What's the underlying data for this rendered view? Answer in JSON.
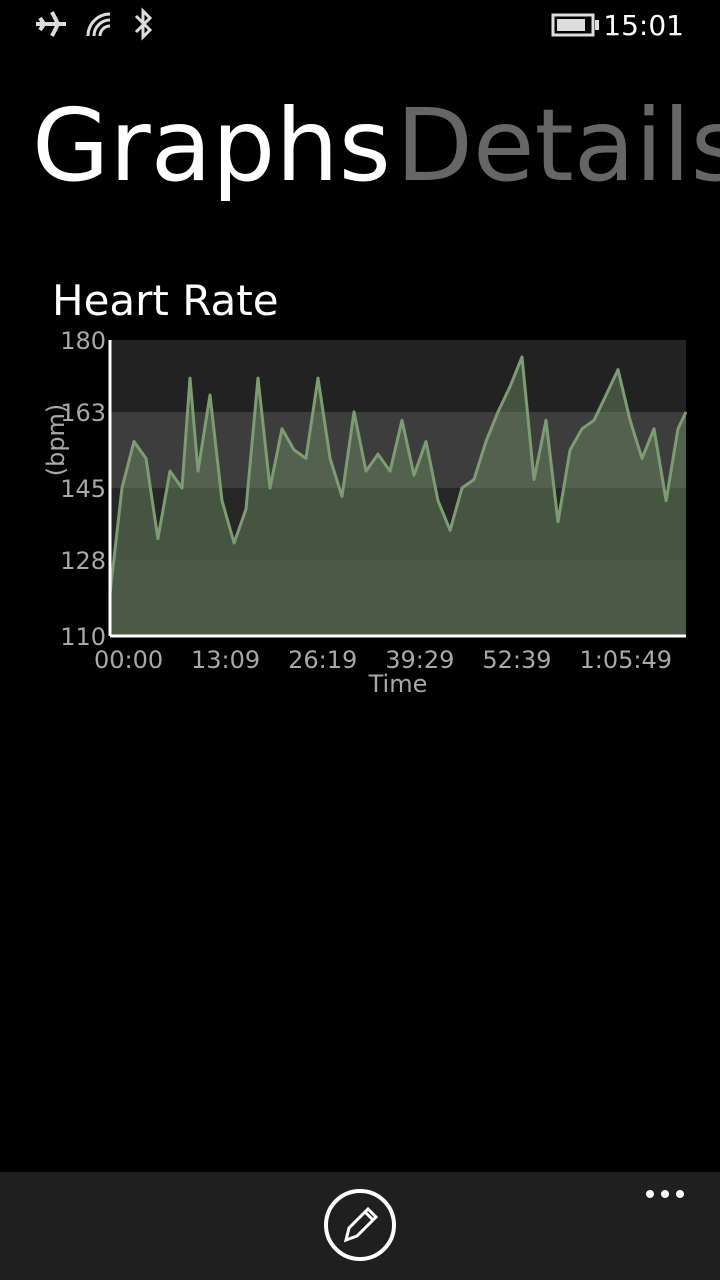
{
  "status_bar": {
    "time": "15:01"
  },
  "pivot": {
    "tabs": [
      "Graphs",
      "Details"
    ]
  },
  "chart_data": {
    "type": "line",
    "title": "Heart Rate",
    "x_label": "Time",
    "y_label": "(bpm)",
    "x": [
      0,
      98,
      195,
      293,
      390,
      488,
      586,
      651,
      716,
      813,
      911,
      1009,
      1106,
      1204,
      1301,
      1399,
      1497,
      1594,
      1692,
      1790,
      1887,
      1985,
      2082,
      2180,
      2278,
      2375,
      2473,
      2570,
      2668,
      2766,
      2863,
      2961,
      3058,
      3156,
      3254,
      3351,
      3449,
      3546,
      3644,
      3742,
      3839,
      3937,
      4035,
      4132,
      4230,
      4327,
      4425,
      4523,
      4620,
      4685
    ],
    "values": [
      120,
      145,
      156,
      152,
      133,
      149,
      145,
      171,
      149,
      167,
      142,
      132,
      140,
      171,
      145,
      159,
      154,
      152,
      171,
      152,
      143,
      163,
      149,
      153,
      149,
      161,
      148,
      156,
      142,
      135,
      145,
      147,
      156,
      163,
      169,
      176,
      147,
      161,
      137,
      154,
      159,
      161,
      167,
      173,
      161,
      152,
      159,
      142,
      159,
      163
    ],
    "color": "#7d9c72",
    "area_color": "rgba(110,145,100,0.45)",
    "xlim": [
      0,
      4685
    ],
    "xticks": [
      {
        "value": 0,
        "label": "00:00"
      },
      {
        "value": 789,
        "label": "13:09"
      },
      {
        "value": 1579,
        "label": "26:19"
      },
      {
        "value": 2369,
        "label": "39:29"
      },
      {
        "value": 3159,
        "label": "52:39"
      },
      {
        "value": 3949,
        "label": "1:05:49"
      }
    ],
    "ylim": [
      110,
      180
    ],
    "yticks": [
      110,
      128,
      145,
      163,
      180
    ],
    "band_colors": [
      "#2e2e2e",
      "#262626",
      "#3d3d3d",
      "#222222"
    ],
    "axis_color": "#ffffff"
  }
}
